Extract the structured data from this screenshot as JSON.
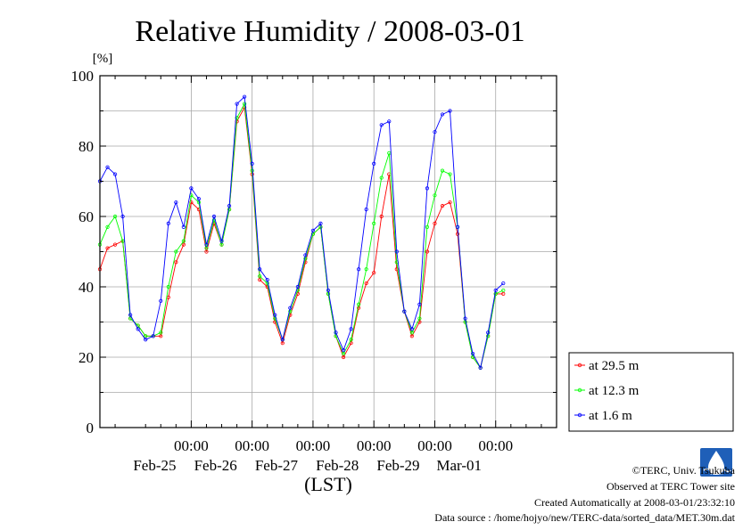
{
  "chart_data": {
    "type": "line",
    "title": "Relative Humidity / 2008-03-01",
    "ylabel": "[%]",
    "xlabel": "(LST)",
    "ylim": [
      0,
      100
    ],
    "yticks": [
      0,
      20,
      40,
      60,
      80,
      100
    ],
    "xlim_hours": [
      -36,
      144
    ],
    "x_unit": "hours from 2008-02-25 00:00 LST",
    "xticks": [
      {
        "time": "00:00",
        "date": "Feb-25"
      },
      {
        "time": "00:00",
        "date": "Feb-26"
      },
      {
        "time": "00:00",
        "date": "Feb-27"
      },
      {
        "time": "00:00",
        "date": "Feb-28"
      },
      {
        "time": "00:00",
        "date": "Feb-29"
      },
      {
        "time": "00:00",
        "date": "Mar-01"
      }
    ],
    "grid": true,
    "legend_position": "right",
    "x": [
      -36,
      -33,
      -30,
      -27,
      -24,
      -21,
      -18,
      -15,
      -12,
      -9,
      -6,
      -3,
      0,
      3,
      6,
      9,
      12,
      15,
      18,
      21,
      24,
      27,
      30,
      33,
      36,
      39,
      42,
      45,
      48,
      51,
      54,
      57,
      60,
      63,
      66,
      69,
      72,
      75,
      78,
      81,
      84,
      87,
      90,
      93,
      96,
      99,
      102,
      105,
      108,
      111,
      114,
      117,
      120,
      123,
      126,
      129,
      132,
      135,
      138,
      141,
      144
    ],
    "series": [
      {
        "name": "at 29.5 m",
        "color": "#ff0000",
        "values": [
          45,
          51,
          52,
          53,
          31,
          29,
          26,
          26,
          26,
          37,
          47,
          52,
          64,
          62,
          50,
          58,
          52,
          62,
          87,
          91,
          72,
          42,
          40,
          30,
          24,
          32,
          38,
          47,
          55,
          57,
          38,
          26,
          20,
          24,
          34,
          41,
          44,
          60,
          72,
          45,
          33,
          26,
          30,
          50,
          58,
          63,
          64,
          55,
          30,
          20,
          17,
          26,
          38,
          38,
          null,
          null,
          null,
          null,
          null,
          null,
          null
        ]
      },
      {
        "name": "at 12.3 m",
        "color": "#00ff00",
        "values": [
          52,
          57,
          60,
          53,
          31,
          29,
          26,
          26,
          27,
          40,
          50,
          53,
          66,
          64,
          51,
          59,
          52,
          62,
          88,
          92,
          73,
          43,
          41,
          31,
          25,
          33,
          39,
          48,
          55,
          57,
          38,
          26,
          21,
          25,
          35,
          45,
          58,
          71,
          78,
          47,
          33,
          27,
          31,
          57,
          66,
          73,
          72,
          57,
          30,
          20,
          17,
          26,
          38,
          39,
          null,
          null,
          null,
          null,
          null,
          null,
          null
        ]
      },
      {
        "name": "at 1.6 m",
        "color": "#0000ff",
        "values": [
          70,
          74,
          72,
          60,
          32,
          28,
          25,
          26,
          36,
          58,
          64,
          57,
          68,
          65,
          52,
          60,
          53,
          63,
          92,
          94,
          75,
          45,
          42,
          32,
          25,
          34,
          40,
          49,
          56,
          58,
          39,
          27,
          22,
          28,
          45,
          62,
          75,
          86,
          87,
          50,
          33,
          28,
          35,
          68,
          84,
          89,
          90,
          57,
          31,
          21,
          17,
          27,
          39,
          41,
          null,
          null,
          null,
          null,
          null,
          null,
          null
        ]
      }
    ]
  },
  "credits": {
    "copyright": "©TERC, Univ. Tsukuba",
    "observed": "Observed at TERC Tower site",
    "created": "Created Automatically at 2008-03-01/23:32:10",
    "source": "Data source : /home/hojyo/new/TERC-data/sorted_data/MET.30m.dat",
    "logo_text": "TERC"
  }
}
